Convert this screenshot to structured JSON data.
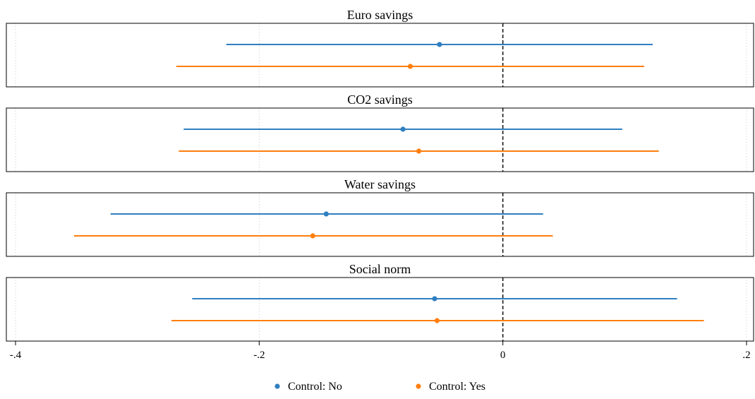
{
  "chart_data": {
    "type": "scatter",
    "subtype": "coefficient-plot",
    "x_axis": {
      "xlim": [
        -0.4,
        0.2
      ],
      "ticks": [
        -0.4,
        -0.2,
        0,
        0.2
      ],
      "tick_labels": [
        "-.4",
        "-.2",
        "0",
        ".2"
      ],
      "reference_line": 0,
      "grid": true
    },
    "series": [
      {
        "name": "Control: No",
        "color": "#2f7fc1"
      },
      {
        "name": "Control: Yes",
        "color": "#ff7f0e"
      }
    ],
    "panels": [
      {
        "title": "Euro savings",
        "estimates": [
          {
            "series": 0,
            "estimate": -0.052,
            "ci": [
              -0.227,
              0.123
            ]
          },
          {
            "series": 1,
            "estimate": -0.076,
            "ci": [
              -0.268,
              0.116
            ]
          }
        ]
      },
      {
        "title": "CO2 savings",
        "estimates": [
          {
            "series": 0,
            "estimate": -0.082,
            "ci": [
              -0.262,
              0.098
            ]
          },
          {
            "series": 1,
            "estimate": -0.069,
            "ci": [
              -0.266,
              0.128
            ]
          }
        ]
      },
      {
        "title": "Water savings",
        "estimates": [
          {
            "series": 0,
            "estimate": -0.145,
            "ci": [
              -0.322,
              0.033
            ]
          },
          {
            "series": 1,
            "estimate": -0.156,
            "ci": [
              -0.352,
              0.041
            ]
          }
        ]
      },
      {
        "title": "Social norm",
        "estimates": [
          {
            "series": 0,
            "estimate": -0.056,
            "ci": [
              -0.255,
              0.143
            ]
          },
          {
            "series": 1,
            "estimate": -0.054,
            "ci": [
              -0.272,
              0.165
            ]
          }
        ]
      }
    ],
    "legend": {
      "placement": "bottom",
      "entries": [
        "Control: No",
        "Control: Yes"
      ]
    }
  }
}
